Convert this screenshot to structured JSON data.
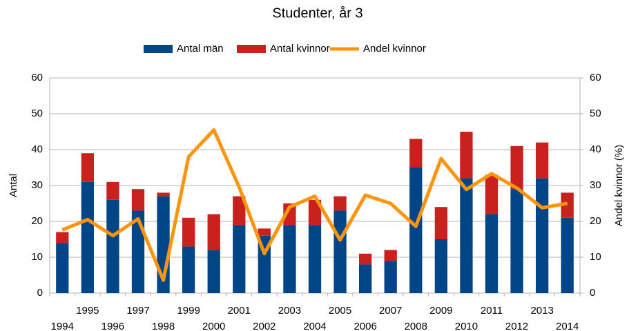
{
  "chart_data": {
    "type": "bar",
    "title": "Studenter, år 3",
    "ylabel": "Antal",
    "y2label": "Andel kvinnor (%)",
    "categories": [
      "1994",
      "1995",
      "1996",
      "1997",
      "1998",
      "1999",
      "2000",
      "2001",
      "2002",
      "2003",
      "2004",
      "2005",
      "2006",
      "2007",
      "2008",
      "2009",
      "2010",
      "2011",
      "2012",
      "2013",
      "2014"
    ],
    "series": [
      {
        "name": "Antal män",
        "color": "#004586",
        "stacked": true,
        "values": [
          14,
          31,
          26,
          23,
          27,
          13,
          12,
          19,
          16,
          19,
          19,
          23,
          8,
          9,
          35,
          15,
          32,
          22,
          29,
          32,
          21
        ]
      },
      {
        "name": "Antal kvinnor",
        "color": "#c9211e",
        "stacked": true,
        "values": [
          3,
          8,
          5,
          6,
          1,
          8,
          10,
          8,
          2,
          6,
          7,
          4,
          3,
          3,
          8,
          9,
          13,
          11,
          12,
          10,
          7
        ]
      },
      {
        "name": "Andel kvinnor",
        "color": "#ff950e",
        "type": "line",
        "axis": "y2",
        "values": [
          17.6,
          20.5,
          16,
          20.7,
          3.6,
          38,
          45.5,
          29.6,
          11,
          24,
          27,
          14.8,
          27.3,
          25,
          18.6,
          37.5,
          28.9,
          33.3,
          29.3,
          23.8,
          25
        ]
      }
    ],
    "ylim": [
      0,
      60
    ],
    "yticks": [
      0,
      10,
      20,
      30,
      40,
      50,
      60
    ],
    "y2lim": [
      0,
      60
    ],
    "y2ticks": [
      0,
      10,
      20,
      30,
      40,
      50,
      60
    ],
    "grid": true,
    "legend": "top"
  }
}
